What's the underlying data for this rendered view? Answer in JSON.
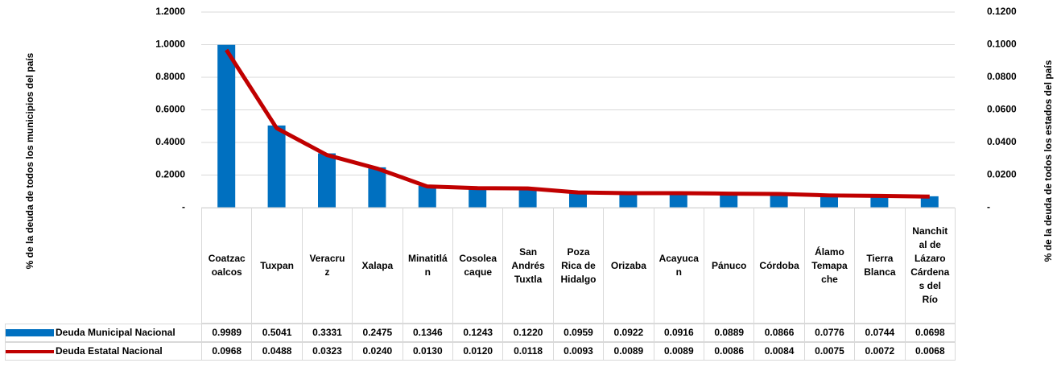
{
  "chart_data": {
    "type": "bar-line-table",
    "y_label": "% de la deuda  de todos los municipios del país",
    "y2_label": "% de la deuda de todos los estados del país",
    "categories": [
      "Coatzacoalcos",
      "Tuxpan",
      "Veracruz",
      "Xalapa",
      "Minatitlán",
      "Cosoleacaque",
      "San Andrés Tuxtla",
      "Poza Rica de Hidalgo",
      "Orizaba",
      "Acayucan",
      "Pánuco",
      "Córdoba",
      "Álamo Temapache",
      "Tierra Blanca",
      "Nanchital de Lázaro Cárdenas del Río"
    ],
    "series": [
      {
        "name": "Deuda Municipal Nacional",
        "type": "bar",
        "color": "#0070c0",
        "values": [
          0.9989,
          0.5041,
          0.3331,
          0.2475,
          0.1346,
          0.1243,
          0.122,
          0.0959,
          0.0922,
          0.0916,
          0.0889,
          0.0866,
          0.0776,
          0.0744,
          0.0698
        ],
        "value_labels": [
          "0.9989",
          "0.5041",
          "0.3331",
          "0.2475",
          "0.1346",
          "0.1243",
          "0.1220",
          "0.0959",
          "0.0922",
          "0.0916",
          "0.0889",
          "0.0866",
          "0.0776",
          "0.0744",
          "0.0698"
        ]
      },
      {
        "name": "Deuda Estatal Nacional",
        "type": "line",
        "axis": "y2",
        "color": "#c00000",
        "values": [
          0.0968,
          0.0488,
          0.0323,
          0.024,
          0.013,
          0.012,
          0.0118,
          0.0093,
          0.0089,
          0.0089,
          0.0086,
          0.0084,
          0.0075,
          0.0072,
          0.0068
        ],
        "value_labels": [
          "0.0968",
          "0.0488",
          "0.0323",
          "0.0240",
          "0.0130",
          "0.0120",
          "0.0118",
          "0.0093",
          "0.0089",
          "0.0089",
          "0.0086",
          "0.0084",
          "0.0075",
          "0.0072",
          "0.0068"
        ]
      }
    ],
    "ylim": [
      0,
      1.2
    ],
    "yticks": [
      {
        "value": 0,
        "label": "-"
      },
      {
        "value": 0.2,
        "label": "0.2000"
      },
      {
        "value": 0.4,
        "label": "0.4000"
      },
      {
        "value": 0.6,
        "label": "0.6000"
      },
      {
        "value": 0.8,
        "label": "0.8000"
      },
      {
        "value": 1,
        "label": "1.0000"
      },
      {
        "value": 1.2,
        "label": "1.2000"
      }
    ],
    "y2lim": [
      0,
      0.12
    ],
    "y2ticks": [
      {
        "value": 0,
        "label": "-"
      },
      {
        "value": 0.02,
        "label": "0.0200"
      },
      {
        "value": 0.04,
        "label": "0.0400"
      },
      {
        "value": 0.06,
        "label": "0.0600"
      },
      {
        "value": 0.08,
        "label": "0.0800"
      },
      {
        "value": 0.1,
        "label": "0.1000"
      },
      {
        "value": 0.12,
        "label": "0.1200"
      }
    ],
    "grid": true
  }
}
